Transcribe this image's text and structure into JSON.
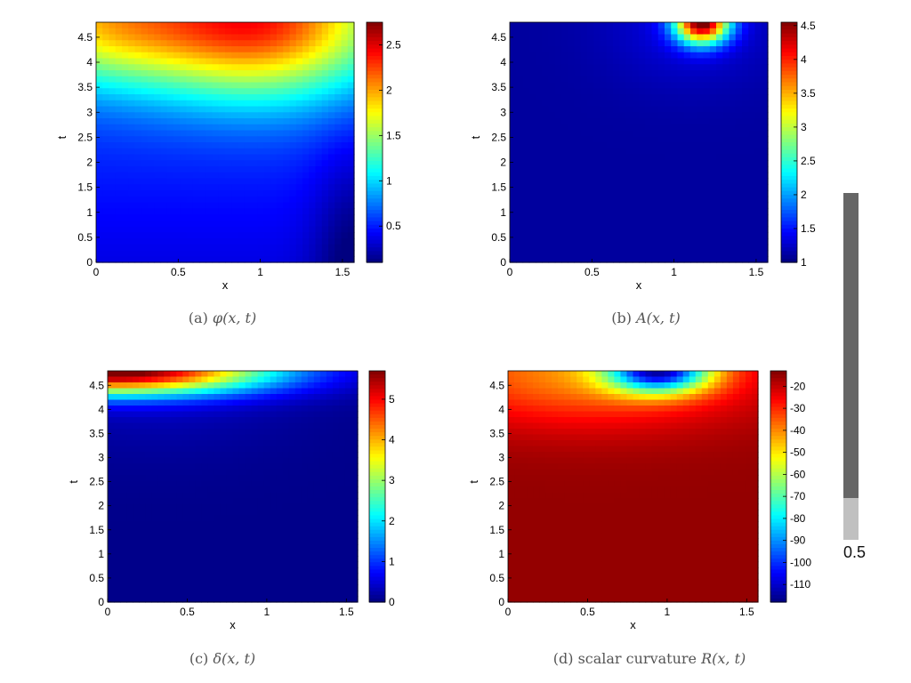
{
  "chart_data": [
    {
      "type": "heatmap",
      "xlabel": "x",
      "ylabel": "t",
      "xlim": [
        0,
        1.5708
      ],
      "ylim": [
        0,
        4.8
      ],
      "x_ticks": [
        "0",
        "0.5",
        "1",
        "1.5"
      ],
      "y_ticks": [
        "0",
        "0.5",
        "1",
        "1.5",
        "2",
        "2.5",
        "3",
        "3.5",
        "4",
        "4.5"
      ],
      "colorbar": {
        "range": [
          0.1,
          2.75
        ],
        "ticks": [
          "0.5",
          "1",
          "1.5",
          "2",
          "2.5"
        ]
      },
      "peak": {
        "x": 0.98,
        "t": 4.8,
        "value": 2.7
      },
      "caption_label": "(a)",
      "caption_math": "φ(x, t)"
    },
    {
      "type": "heatmap",
      "xlabel": "x",
      "ylabel": "t",
      "xlim": [
        0,
        1.5708
      ],
      "ylim": [
        0,
        4.8
      ],
      "x_ticks": [
        "0",
        "0.5",
        "1",
        "1.5"
      ],
      "y_ticks": [
        "0",
        "0.5",
        "1",
        "1.5",
        "2",
        "2.5",
        "3",
        "3.5",
        "4",
        "4.5"
      ],
      "colorbar": {
        "range": [
          1,
          4.55
        ],
        "ticks": [
          "1",
          "1.5",
          "2",
          "2.5",
          "3",
          "3.5",
          "4",
          "4.5"
        ]
      },
      "peak": {
        "x": 1.17,
        "t": 4.8,
        "value": 4.5
      },
      "caption_label": "(b)",
      "caption_math": "A(x, t)"
    },
    {
      "type": "heatmap",
      "xlabel": "x",
      "ylabel": "t",
      "xlim": [
        0,
        1.5708
      ],
      "ylim": [
        0,
        4.8
      ],
      "x_ticks": [
        "0",
        "0.5",
        "1",
        "1.5"
      ],
      "y_ticks": [
        "0",
        "0.5",
        "1",
        "1.5",
        "2",
        "2.5",
        "3",
        "3.5",
        "4",
        "4.5"
      ],
      "colorbar": {
        "range": [
          0,
          5.7
        ],
        "ticks": [
          "0",
          "1",
          "2",
          "3",
          "4",
          "5"
        ]
      },
      "peak": {
        "x": 0,
        "t": 4.8,
        "value": 5.6
      },
      "caption_label": "(c)",
      "caption_math": "δ(x, t)"
    },
    {
      "type": "heatmap",
      "xlabel": "x",
      "ylabel": "t",
      "xlim": [
        0,
        1.5708
      ],
      "ylim": [
        0,
        4.8
      ],
      "x_ticks": [
        "0",
        "0.5",
        "1",
        "1.5"
      ],
      "y_ticks": [
        "0",
        "0.5",
        "1",
        "1.5",
        "2",
        "2.5",
        "3",
        "3.5",
        "4",
        "4.5"
      ],
      "colorbar": {
        "range": [
          -118,
          -13
        ],
        "ticks": [
          "-20",
          "-30",
          "-40",
          "-50",
          "-60",
          "-70",
          "-80",
          "-90",
          "-100",
          "-110"
        ]
      },
      "peak": {
        "x": 0.95,
        "t": 4.8,
        "value": -118
      },
      "caption_label": "(d)",
      "caption_prefix": "scalar curvature ",
      "caption_math": "R(x, t)"
    }
  ],
  "side_bar": {
    "label": "0.5",
    "value_fraction": 0.88,
    "colors": {
      "dark": "#666666",
      "light": "#c0c0c0"
    }
  }
}
